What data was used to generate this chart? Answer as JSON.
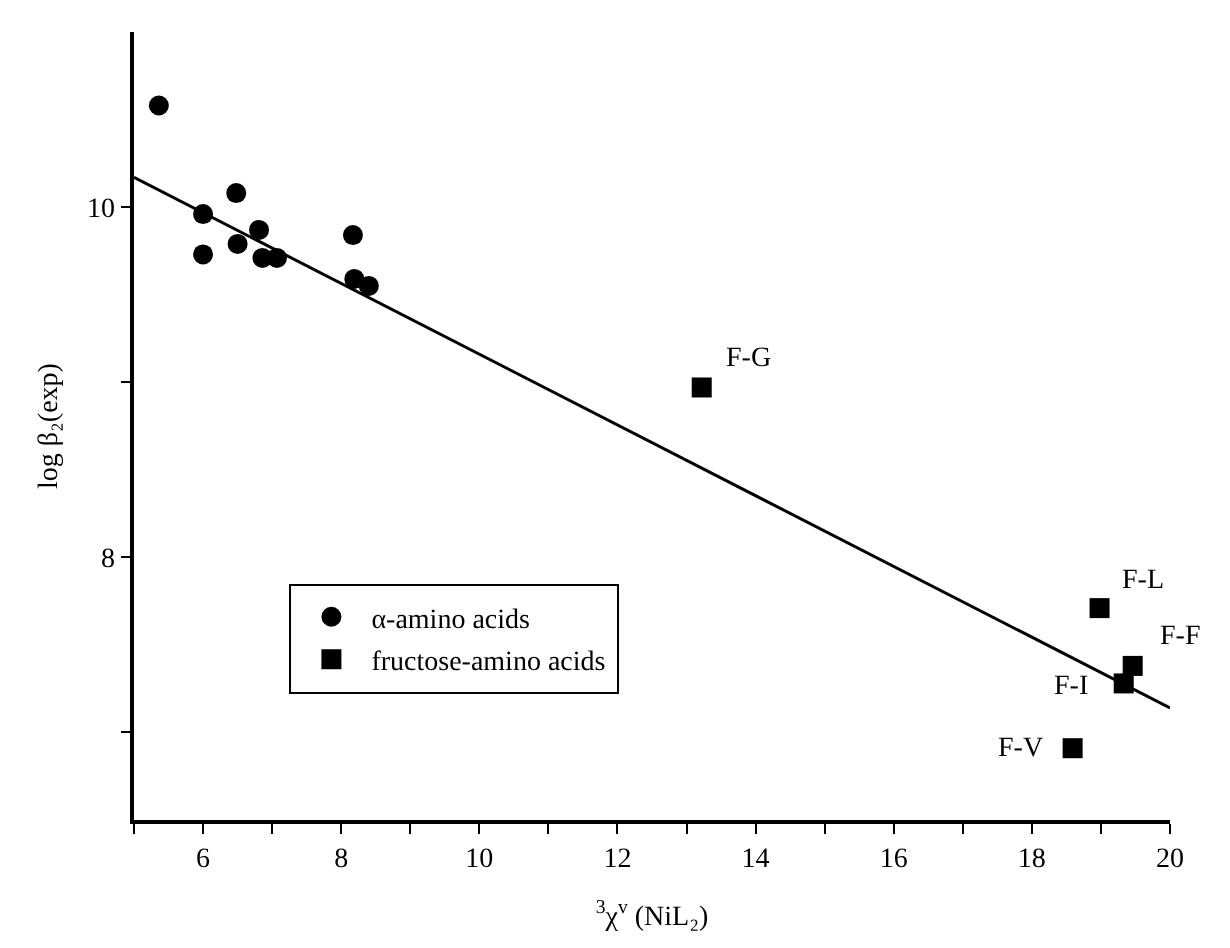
{
  "chart_data": {
    "type": "scatter",
    "xlabel": "$^{3}$χ$^{v}$ (NiL₂)",
    "ylabel": "log β₂(exp)",
    "xlim": [
      5,
      20
    ],
    "xticks": [
      {
        "value": 5,
        "label": null
      },
      6,
      {
        "value": 7,
        "label": null
      },
      8,
      {
        "value": 9,
        "label": null
      },
      10,
      {
        "value": 11,
        "label": null
      },
      12,
      {
        "value": 13,
        "label": null
      },
      14,
      {
        "value": 15,
        "label": null
      },
      16,
      {
        "value": 17,
        "label": null
      },
      18,
      {
        "value": 19,
        "label": null
      },
      20
    ],
    "ylim": [
      6.5,
      11
    ],
    "yticks": [
      {
        "value": 7,
        "label": null
      },
      8,
      {
        "value": 9,
        "label": null
      },
      10
    ],
    "grid": false,
    "legend": "bottom left",
    "series": [
      {
        "name": "α-amino acids",
        "color": "#000000",
        "marker": "circle",
        "x": [
          5.36,
          6.0,
          6.0,
          6.48,
          6.5,
          6.81,
          6.86,
          7.07,
          8.17,
          8.19,
          8.4
        ],
        "values": [
          10.58,
          9.96,
          9.73,
          10.08,
          9.79,
          9.87,
          9.71,
          9.71,
          9.84,
          9.59,
          9.55
        ]
      },
      {
        "name": "fructose-amino acids",
        "color": "#000000",
        "marker": "square",
        "x": [
          13.22,
          18.98,
          19.46,
          19.33,
          18.59
        ],
        "values": [
          8.97,
          7.71,
          7.38,
          7.28,
          6.91
        ]
      },
      {
        "type": "line",
        "color": "#000000",
        "marker": "none",
        "line_style": "solid",
        "x": [
          5,
          20
        ],
        "values": [
          10.17,
          7.14
        ]
      }
    ],
    "annotations": [
      {
        "text": "F-G",
        "x": 13.22,
        "y": 8.97
      },
      {
        "text": "F-L",
        "x": 18.98,
        "y": 7.71
      },
      {
        "text": "F-F",
        "x": 19.46,
        "y": 7.38
      },
      {
        "text": "F-I",
        "x": 19.33,
        "y": 7.28
      },
      {
        "text": "F-V",
        "x": 18.59,
        "y": 6.91
      }
    ]
  }
}
